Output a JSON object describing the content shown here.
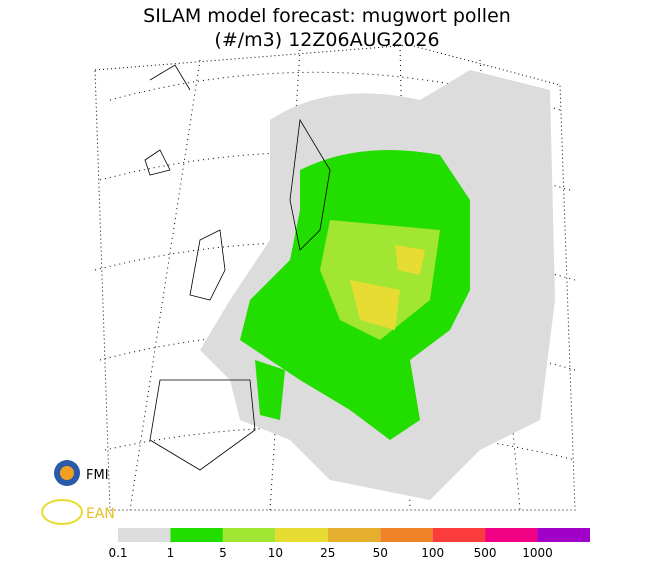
{
  "header": {
    "title": "SILAM model forecast: mugwort pollen",
    "subtitle": "(#/m3) 12Z06AUG2026"
  },
  "logos": {
    "fmi": "FMI",
    "ean": "EAN"
  },
  "legend": {
    "items": [
      {
        "label": "0.1",
        "color": "#dcdcdc"
      },
      {
        "label": "1",
        "color": "#22dd00"
      },
      {
        "label": "5",
        "color": "#a0e632"
      },
      {
        "label": "10",
        "color": "#e6dc32"
      },
      {
        "label": "25",
        "color": "#e6af2d"
      },
      {
        "label": "50",
        "color": "#f08228"
      },
      {
        "label": "100",
        "color": "#fa3c3c"
      },
      {
        "label": "500",
        "color": "#f00082"
      },
      {
        "label": "1000",
        "color": "#a000c8"
      }
    ]
  }
}
